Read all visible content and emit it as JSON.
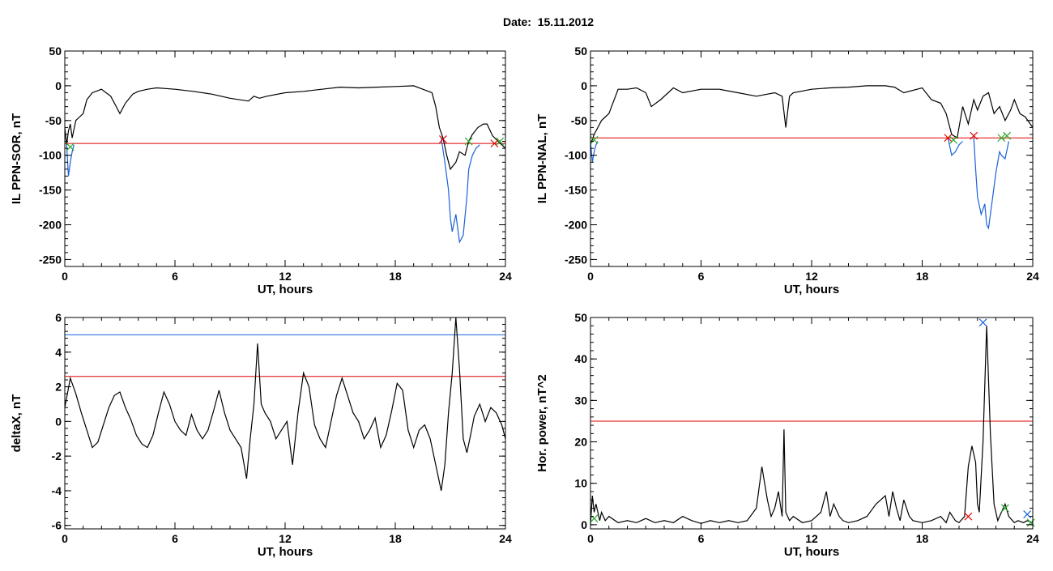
{
  "figure": {
    "title": "Date:  15.11.2012"
  },
  "chart_data": [
    {
      "type": "line",
      "title": "",
      "xlabel": "UT, hours",
      "ylabel": "IL PPN-SOR, nT",
      "xlim": [
        0,
        24
      ],
      "ylim": [
        -260,
        50
      ],
      "xticks": [
        0,
        6,
        12,
        18,
        24
      ],
      "yticks": [
        50,
        0,
        -50,
        -100,
        -150,
        -200,
        -250
      ],
      "grid": false,
      "threshold": {
        "value": -83,
        "color": "#e00000"
      },
      "series": [
        {
          "color": "#000000",
          "x": [
            0,
            0.1,
            0.2,
            0.3,
            0.4,
            0.6,
            0.8,
            1.0,
            1.2,
            1.5,
            2.0,
            2.5,
            2.8,
            3.0,
            3.3,
            3.7,
            4.0,
            4.5,
            5.0,
            6.0,
            7.0,
            8.0,
            9.0,
            10.0,
            10.3,
            10.6,
            11.0,
            12.0,
            13.0,
            14.0,
            15.0,
            16.0,
            17.0,
            18.0,
            19.0,
            19.5,
            20.0,
            20.2,
            20.4,
            20.6,
            20.8,
            21.0,
            21.3,
            21.5,
            21.8,
            22.0,
            22.2,
            22.5,
            22.8,
            23.0,
            23.3,
            23.6,
            24.0
          ],
          "y": [
            -60,
            -85,
            -65,
            -55,
            -75,
            -50,
            -45,
            -40,
            -20,
            -10,
            -5,
            -15,
            -30,
            -40,
            -25,
            -12,
            -8,
            -5,
            -3,
            -5,
            -8,
            -12,
            -18,
            -22,
            -15,
            -18,
            -15,
            -10,
            -8,
            -5,
            -2,
            -3,
            -2,
            -1,
            0,
            -5,
            -10,
            -30,
            -60,
            -75,
            -100,
            -120,
            -110,
            -95,
            -100,
            -80,
            -70,
            -60,
            -55,
            -55,
            -72,
            -80,
            -90
          ]
        },
        {
          "color": "#1a62d8",
          "x": [
            0.1,
            0.2,
            0.3,
            0.4,
            0.5
          ],
          "y": [
            -85,
            -130,
            -110,
            -95,
            -85
          ]
        },
        {
          "color": "#1a62d8",
          "x": [
            20.5,
            20.7,
            20.9,
            21.0,
            21.1,
            21.3,
            21.5,
            21.7,
            21.9,
            22.0,
            22.2,
            22.4,
            22.6
          ],
          "y": [
            -75,
            -110,
            -150,
            -190,
            -210,
            -185,
            -225,
            -215,
            -160,
            -120,
            -100,
            -90,
            -85
          ]
        }
      ],
      "markers": [
        {
          "x": 0.3,
          "y": -88,
          "color": "#2aa82a"
        },
        {
          "x": 20.6,
          "y": -77,
          "color": "#e00000"
        },
        {
          "x": 22.0,
          "y": -80,
          "color": "#2aa82a"
        },
        {
          "x": 23.4,
          "y": -83,
          "color": "#e00000"
        },
        {
          "x": 23.7,
          "y": -80,
          "color": "#2aa82a"
        }
      ]
    },
    {
      "type": "line",
      "title": "",
      "xlabel": "UT, hours",
      "ylabel": "IL PPN-NAL, nT",
      "xlim": [
        0,
        24
      ],
      "ylim": [
        -260,
        50
      ],
      "xticks": [
        0,
        6,
        12,
        18,
        24
      ],
      "yticks": [
        50,
        0,
        -50,
        -100,
        -150,
        -200,
        -250
      ],
      "grid": false,
      "threshold": {
        "value": -75,
        "color": "#e00000"
      },
      "series": [
        {
          "color": "#000000",
          "x": [
            0,
            0.2,
            0.4,
            0.6,
            0.8,
            1.0,
            1.5,
            2.0,
            2.5,
            3.0,
            3.3,
            3.8,
            4.5,
            5.0,
            6.0,
            7.0,
            8.0,
            9.0,
            10.0,
            10.4,
            10.6,
            10.8,
            11.0,
            12.0,
            13.0,
            14.0,
            15.0,
            16.0,
            16.5,
            17.0,
            18.0,
            18.5,
            19.0,
            19.3,
            19.6,
            19.9,
            20.2,
            20.5,
            20.8,
            21.0,
            21.3,
            21.6,
            21.9,
            22.2,
            22.5,
            22.8,
            23.0,
            23.3,
            23.6,
            24.0
          ],
          "y": [
            -85,
            -70,
            -60,
            -50,
            -45,
            -40,
            -5,
            -5,
            -3,
            -10,
            -30,
            -20,
            -3,
            -10,
            -5,
            -5,
            -10,
            -15,
            -10,
            -15,
            -60,
            -15,
            -10,
            -5,
            -3,
            -2,
            0,
            0,
            -2,
            -10,
            -3,
            -20,
            -25,
            -40,
            -70,
            -75,
            -30,
            -55,
            -20,
            -35,
            -15,
            -10,
            -40,
            -30,
            -50,
            -35,
            -20,
            -40,
            -45,
            -60
          ]
        },
        {
          "color": "#1a62d8",
          "x": [
            0.0,
            0.1,
            0.2,
            0.3,
            0.4
          ],
          "y": [
            -80,
            -110,
            -95,
            -85,
            -80
          ]
        },
        {
          "color": "#1a62d8",
          "x": [
            19.4,
            19.6,
            19.8,
            20.0,
            20.2
          ],
          "y": [
            -75,
            -100,
            -95,
            -85,
            -80
          ]
        },
        {
          "color": "#1a62d8",
          "x": [
            20.8,
            20.9,
            21.0,
            21.2,
            21.4,
            21.5,
            21.6,
            21.8,
            22.0,
            22.2,
            22.3,
            22.5,
            22.7
          ],
          "y": [
            -75,
            -120,
            -160,
            -185,
            -170,
            -200,
            -205,
            -165,
            -125,
            -95,
            -100,
            -105,
            -80
          ]
        }
      ],
      "markers": [
        {
          "x": 0.2,
          "y": -78,
          "color": "#2aa82a"
        },
        {
          "x": 19.4,
          "y": -75,
          "color": "#e00000"
        },
        {
          "x": 19.7,
          "y": -78,
          "color": "#2aa82a"
        },
        {
          "x": 20.8,
          "y": -72,
          "color": "#e00000"
        },
        {
          "x": 22.3,
          "y": -75,
          "color": "#2aa82a"
        },
        {
          "x": 22.6,
          "y": -72,
          "color": "#2aa82a"
        }
      ]
    },
    {
      "type": "line",
      "title": "",
      "xlabel": "UT, hours",
      "ylabel": "deltaX, nT",
      "xlim": [
        0,
        24
      ],
      "ylim": [
        -6.2,
        6.0
      ],
      "xticks": [
        0,
        6,
        12,
        18,
        24
      ],
      "yticks": [
        6,
        4,
        2,
        0,
        -2,
        -4,
        -6
      ],
      "grid": false,
      "hlines": [
        {
          "value": 5.0,
          "color": "#1a62d8"
        },
        {
          "value": 2.6,
          "color": "#e00000"
        }
      ],
      "series": [
        {
          "color": "#000000",
          "x": [
            0,
            0.3,
            0.6,
            0.9,
            1.2,
            1.5,
            1.8,
            2.1,
            2.4,
            2.7,
            3.0,
            3.3,
            3.6,
            3.9,
            4.2,
            4.5,
            4.8,
            5.1,
            5.4,
            5.7,
            6.0,
            6.3,
            6.6,
            6.9,
            7.2,
            7.5,
            7.8,
            8.1,
            8.4,
            8.7,
            9.0,
            9.3,
            9.6,
            9.9,
            10.1,
            10.3,
            10.5,
            10.7,
            10.9,
            11.2,
            11.5,
            11.8,
            12.1,
            12.4,
            12.7,
            13.0,
            13.3,
            13.6,
            13.9,
            14.2,
            14.5,
            14.8,
            15.1,
            15.4,
            15.7,
            16.0,
            16.3,
            16.6,
            16.9,
            17.2,
            17.5,
            17.8,
            18.1,
            18.4,
            18.7,
            19.0,
            19.3,
            19.6,
            19.9,
            20.2,
            20.5,
            20.7,
            20.9,
            21.1,
            21.3,
            21.5,
            21.7,
            21.9,
            22.1,
            22.3,
            22.6,
            22.9,
            23.2,
            23.5,
            23.8,
            24.0
          ],
          "y": [
            0.8,
            2.5,
            1.6,
            0.5,
            -0.5,
            -1.5,
            -1.2,
            -0.2,
            0.8,
            1.5,
            1.7,
            0.8,
            0.1,
            -0.8,
            -1.3,
            -1.5,
            -0.8,
            0.5,
            1.7,
            1.0,
            0.0,
            -0.5,
            -0.8,
            0.4,
            -0.5,
            -1.0,
            -0.5,
            0.6,
            1.8,
            0.5,
            -0.5,
            -1.0,
            -1.5,
            -3.3,
            -1.0,
            1.0,
            4.5,
            1.0,
            0.5,
            0.0,
            -1.0,
            -0.5,
            0.0,
            -2.5,
            0.5,
            2.8,
            2.0,
            -0.2,
            -1.0,
            -1.5,
            0.0,
            1.5,
            2.5,
            1.5,
            0.5,
            0.0,
            -1.0,
            -0.5,
            0.2,
            -1.5,
            -0.8,
            0.6,
            2.2,
            1.8,
            -0.5,
            -1.5,
            -0.5,
            -0.2,
            -1.0,
            -2.5,
            -4.0,
            -2.5,
            0.5,
            2.8,
            6.0,
            3.0,
            -1.0,
            -1.8,
            -0.8,
            0.3,
            1.0,
            0.0,
            0.8,
            0.5,
            -0.2,
            -1.0
          ]
        }
      ],
      "markers": []
    },
    {
      "type": "line",
      "title": "",
      "xlabel": "UT, hours",
      "ylabel": "Hor. power, nT^2",
      "xlim": [
        0,
        24
      ],
      "ylim": [
        -1,
        50
      ],
      "xticks": [
        0,
        6,
        12,
        18,
        24
      ],
      "yticks": [
        0,
        10,
        20,
        30,
        40,
        50
      ],
      "grid": false,
      "threshold": {
        "value": 25,
        "color": "#e00000"
      },
      "series": [
        {
          "color": "#000000",
          "x": [
            0,
            0.1,
            0.2,
            0.3,
            0.5,
            0.6,
            0.8,
            1.0,
            1.5,
            2.0,
            2.5,
            3.0,
            3.5,
            4.0,
            4.5,
            5.0,
            5.5,
            6.0,
            6.5,
            7.0,
            7.5,
            8.0,
            8.5,
            9.0,
            9.3,
            9.6,
            9.8,
            10.0,
            10.2,
            10.4,
            10.5,
            10.6,
            10.8,
            11.0,
            11.5,
            12.0,
            12.5,
            12.8,
            13.0,
            13.2,
            13.5,
            13.7,
            14.0,
            14.5,
            15.0,
            15.5,
            16.0,
            16.2,
            16.4,
            16.6,
            16.8,
            17.0,
            17.3,
            17.5,
            18.0,
            18.5,
            19.0,
            19.3,
            19.5,
            19.8,
            20.0,
            20.3,
            20.5,
            20.7,
            20.9,
            21.0,
            21.1,
            21.3,
            21.5,
            21.7,
            21.9,
            22.1,
            22.3,
            22.5,
            22.7,
            22.9,
            23.0,
            23.2,
            23.5,
            23.7,
            24.0
          ],
          "y": [
            0,
            7,
            3,
            5,
            1,
            3,
            1,
            2,
            0.5,
            1,
            0.5,
            1.5,
            0.5,
            1,
            0.5,
            2,
            1,
            0.3,
            1,
            0.5,
            1,
            0.5,
            1,
            4,
            14,
            6,
            2,
            4,
            8,
            2,
            23,
            3,
            1,
            2,
            0.5,
            1,
            3,
            8,
            2,
            5,
            2,
            1,
            0.5,
            1,
            2,
            5,
            7,
            2,
            8,
            4,
            1,
            6,
            2,
            1,
            0.5,
            1,
            2,
            0.5,
            3,
            1,
            0.5,
            2,
            14,
            19,
            15,
            5,
            3,
            20,
            48,
            22,
            5,
            1,
            3,
            5,
            2,
            1,
            0.5,
            1,
            0.5,
            1,
            0.5
          ]
        }
      ],
      "markers": [
        {
          "x": 0.2,
          "y": 1.5,
          "color": "#2aa82a"
        },
        {
          "x": 20.5,
          "y": 2.0,
          "color": "#e00000"
        },
        {
          "x": 21.3,
          "y": 48.8,
          "color": "#1a62d8"
        },
        {
          "x": 22.5,
          "y": 4.0,
          "color": "#2aa82a"
        },
        {
          "x": 23.7,
          "y": 2.5,
          "color": "#1a62d8"
        },
        {
          "x": 23.9,
          "y": 0.5,
          "color": "#2aa82a"
        }
      ]
    }
  ]
}
